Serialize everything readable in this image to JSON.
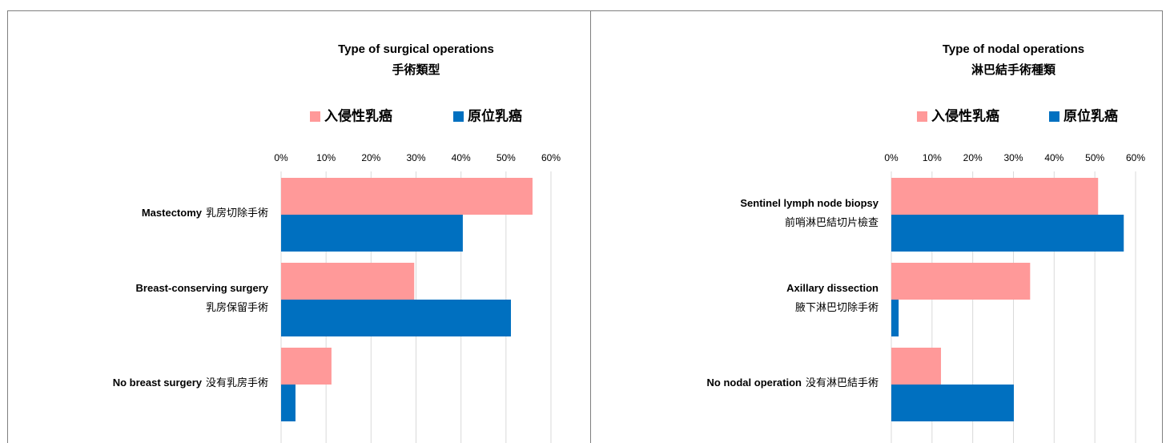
{
  "chart_data": [
    {
      "type": "bar",
      "orientation": "horizontal",
      "title": "Type of surgical operations",
      "subtitle": "手術類型",
      "categories": [
        [
          [
            "Mastectomy",
            "乳房切除手術"
          ]
        ],
        [
          [
            "Breast-conserving surgery"
          ],
          [
            "乳房保留手術"
          ]
        ],
        [
          [
            "No breast surgery",
            "没有乳房手術"
          ]
        ]
      ],
      "series": [
        {
          "name": "入侵性乳癌",
          "color": "#ff9999",
          "values": [
            55.9,
            29.6,
            11.2
          ]
        },
        {
          "name": "原位乳癌",
          "color": "#0070c0",
          "values": [
            40.4,
            51.1,
            3.2
          ]
        }
      ],
      "xlim": [
        0,
        60
      ],
      "xticks": [
        {
          "value": 0,
          "label": "0%"
        },
        {
          "value": 10,
          "label": "10%"
        },
        {
          "value": 20,
          "label": "20%"
        },
        {
          "value": 30,
          "label": "30%"
        },
        {
          "value": 40,
          "label": "40%"
        },
        {
          "value": 50,
          "label": "50%"
        },
        {
          "value": 60,
          "label": "60%"
        }
      ],
      "grid": true,
      "legend": "top"
    },
    {
      "type": "bar",
      "orientation": "horizontal",
      "title": "Type of nodal operations",
      "subtitle": "淋巴結手術種類",
      "categories": [
        [
          [
            "Sentinel lymph node biopsy"
          ],
          [
            "前哨淋巴結切片檢查"
          ]
        ],
        [
          [
            "Axillary dissection"
          ],
          [
            "腋下淋巴切除手術"
          ]
        ],
        [
          [
            "No nodal operation",
            "没有淋巴結手術"
          ]
        ]
      ],
      "series": [
        {
          "name": "入侵性乳癌",
          "color": "#ff9999",
          "values": [
            50.8,
            34.1,
            12.2
          ]
        },
        {
          "name": "原位乳癌",
          "color": "#0070c0",
          "values": [
            57.1,
            1.8,
            30.1
          ]
        }
      ],
      "xlim": [
        0,
        60
      ],
      "xticks": [
        {
          "value": 0,
          "label": "0%"
        },
        {
          "value": 10,
          "label": "10%"
        },
        {
          "value": 20,
          "label": "20%"
        },
        {
          "value": 30,
          "label": "30%"
        },
        {
          "value": 40,
          "label": "40%"
        },
        {
          "value": 50,
          "label": "50%"
        },
        {
          "value": 60,
          "label": "60%"
        }
      ],
      "grid": true,
      "legend": "top"
    }
  ]
}
